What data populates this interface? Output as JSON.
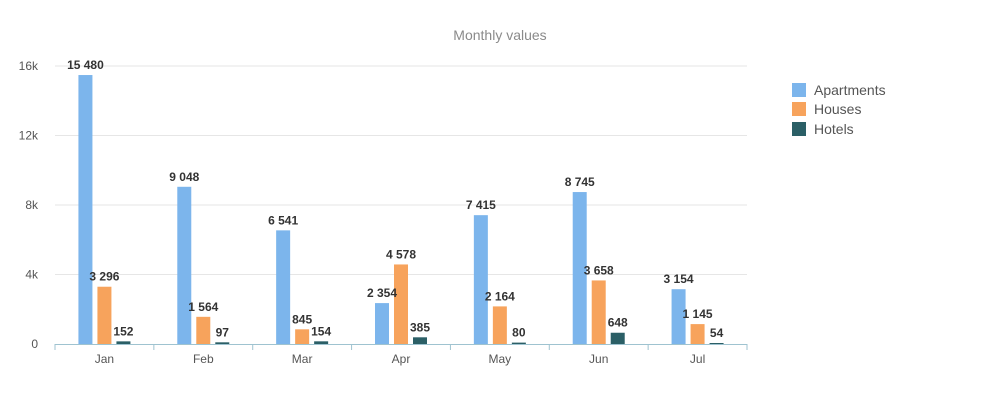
{
  "chart_data": {
    "type": "bar",
    "title": "Monthly values",
    "xlabel": "",
    "ylabel": "",
    "categories": [
      "Jan",
      "Feb",
      "Mar",
      "Apr",
      "May",
      "Jun",
      "Jul"
    ],
    "series": [
      {
        "name": "Apartments",
        "color": "#7cb5ec",
        "values": [
          15480,
          9048,
          6541,
          2354,
          7415,
          8745,
          3154
        ]
      },
      {
        "name": "Houses",
        "color": "#f7a35c",
        "values": [
          3296,
          1564,
          845,
          4578,
          2164,
          3658,
          1145
        ]
      },
      {
        "name": "Hotels",
        "color": "#2b5f66",
        "values": [
          152,
          97,
          154,
          385,
          80,
          648,
          54
        ]
      }
    ],
    "data_labels": [
      [
        "15 480",
        "9 048",
        "6 541",
        "2 354",
        "7 415",
        "8 745",
        "3 154"
      ],
      [
        "3 296",
        "1 564",
        "845",
        "4 578",
        "2 164",
        "3 658",
        "1 145"
      ],
      [
        "152",
        "97",
        "154",
        "385",
        "80",
        "648",
        "54"
      ]
    ],
    "y_ticks": [
      {
        "value": 0,
        "label": "0"
      },
      {
        "value": 4000,
        "label": "4k"
      },
      {
        "value": 8000,
        "label": "8k"
      },
      {
        "value": 12000,
        "label": "12k"
      },
      {
        "value": 16000,
        "label": "16k"
      }
    ],
    "ylim": [
      0,
      16000
    ],
    "grid": true,
    "legend_position": "right"
  }
}
